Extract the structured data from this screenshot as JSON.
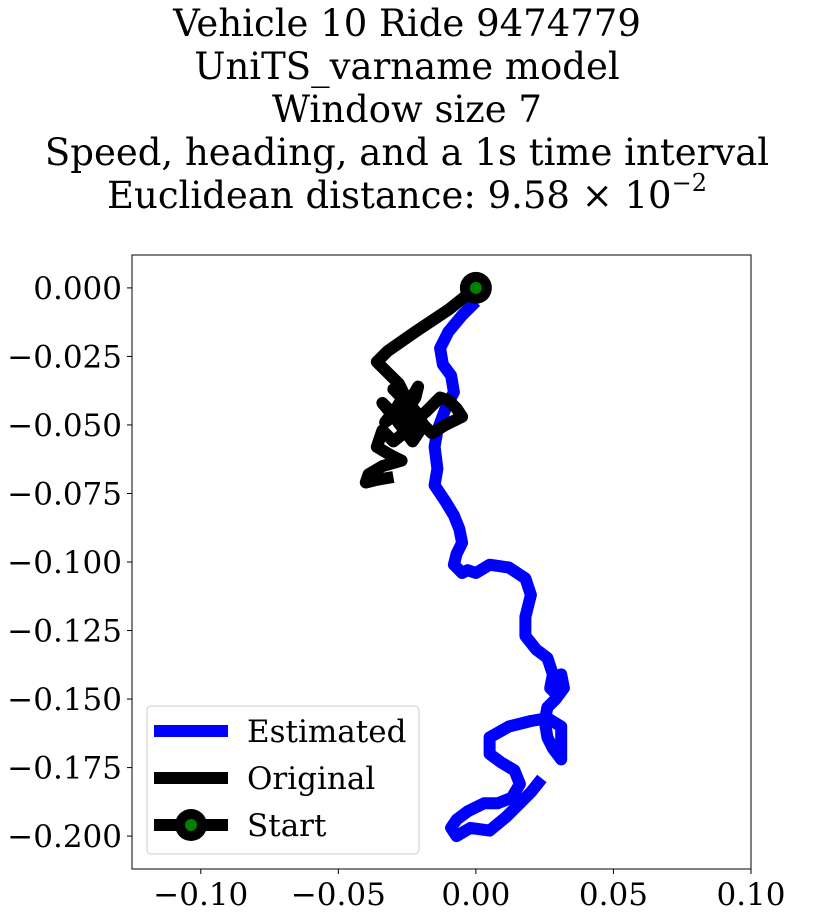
{
  "chart_data": {
    "type": "line",
    "title": {
      "line1": "Vehicle 10 Ride 9474779",
      "line2": "UniTS_varname model",
      "line3": "Window size 7",
      "line4": "Speed, heading, and a 1s time interval",
      "line5_prefix": "Euclidean distance: 9.58",
      "line5_times": "×",
      "line5_base": "10",
      "line5_exponent": "−2"
    },
    "xlabel": "",
    "ylabel": "",
    "xlim": [
      -0.125,
      0.1
    ],
    "ylim": [
      -0.212,
      0.012
    ],
    "xticks": [
      -0.1,
      -0.05,
      0.0,
      0.05,
      0.1
    ],
    "xtick_labels": [
      "−0.10",
      "−0.05",
      "0.00",
      "0.05",
      "0.10"
    ],
    "yticks": [
      0.0,
      -0.025,
      -0.05,
      -0.075,
      -0.1,
      -0.125,
      -0.15,
      -0.175,
      -0.2
    ],
    "ytick_labels": [
      "0.000",
      "−0.025",
      "−0.050",
      "−0.075",
      "−0.100",
      "−0.125",
      "−0.150",
      "−0.175",
      "−0.200"
    ],
    "grid": false,
    "legend_placement": "lower-left",
    "series": [
      {
        "name": "Estimated",
        "color": "#0000ff",
        "x": [
          0.0,
          -0.005,
          -0.01,
          -0.013,
          -0.012,
          -0.009,
          -0.008,
          -0.011,
          -0.014,
          -0.015,
          -0.014,
          -0.015,
          -0.011,
          -0.008,
          -0.006,
          -0.005,
          -0.007,
          -0.008,
          -0.005,
          -0.003,
          0.0,
          0.005,
          0.012,
          0.018,
          0.02,
          0.018,
          0.018,
          0.022,
          0.026,
          0.028,
          0.027,
          0.029,
          0.031,
          0.032,
          0.029,
          0.026,
          0.025,
          0.026,
          0.028,
          0.031,
          0.031,
          0.026,
          0.02,
          0.012,
          0.005,
          0.005,
          0.009,
          0.014,
          0.016,
          0.013,
          0.008,
          0.003,
          -0.003,
          -0.007,
          -0.009,
          -0.007,
          -0.002,
          0.005,
          0.011,
          0.016,
          0.02,
          0.024
        ],
        "y": [
          -0.005,
          -0.01,
          -0.016,
          -0.022,
          -0.028,
          -0.032,
          -0.038,
          -0.044,
          -0.052,
          -0.058,
          -0.066,
          -0.072,
          -0.078,
          -0.083,
          -0.088,
          -0.093,
          -0.097,
          -0.101,
          -0.104,
          -0.103,
          -0.104,
          -0.101,
          -0.102,
          -0.106,
          -0.112,
          -0.12,
          -0.127,
          -0.132,
          -0.135,
          -0.141,
          -0.146,
          -0.148,
          -0.141,
          -0.146,
          -0.15,
          -0.153,
          -0.158,
          -0.164,
          -0.168,
          -0.172,
          -0.16,
          -0.157,
          -0.158,
          -0.16,
          -0.164,
          -0.17,
          -0.173,
          -0.176,
          -0.181,
          -0.186,
          -0.188,
          -0.188,
          -0.191,
          -0.194,
          -0.197,
          -0.2,
          -0.197,
          -0.198,
          -0.193,
          -0.188,
          -0.184,
          -0.179
        ]
      },
      {
        "name": "Original",
        "color": "#000000",
        "x": [
          0.0,
          -0.01,
          -0.022,
          -0.032,
          -0.036,
          -0.033,
          -0.028,
          -0.026,
          -0.029,
          -0.033,
          -0.025,
          -0.021,
          -0.022,
          -0.026,
          -0.024,
          -0.018,
          -0.013,
          -0.01,
          -0.007,
          -0.005,
          -0.011,
          -0.016,
          -0.02,
          -0.024,
          -0.03,
          -0.026,
          -0.022,
          -0.019,
          -0.023,
          -0.029,
          -0.034,
          -0.029,
          -0.025,
          -0.03,
          -0.034,
          -0.036,
          -0.031,
          -0.027,
          -0.034,
          -0.039,
          -0.04,
          -0.036,
          -0.03
        ],
        "y": [
          0.0,
          -0.008,
          -0.016,
          -0.023,
          -0.027,
          -0.03,
          -0.035,
          -0.039,
          -0.044,
          -0.049,
          -0.043,
          -0.036,
          -0.04,
          -0.046,
          -0.05,
          -0.045,
          -0.04,
          -0.041,
          -0.044,
          -0.047,
          -0.05,
          -0.053,
          -0.049,
          -0.043,
          -0.037,
          -0.04,
          -0.045,
          -0.05,
          -0.056,
          -0.048,
          -0.042,
          -0.047,
          -0.052,
          -0.056,
          -0.052,
          -0.058,
          -0.061,
          -0.063,
          -0.065,
          -0.068,
          -0.071,
          -0.07,
          -0.069
        ]
      }
    ],
    "start_marker": {
      "name": "Start",
      "x": 0.0,
      "y": 0.0,
      "face_color": "#008000",
      "edge_color": "#000000"
    },
    "legend_entries": [
      "Estimated",
      "Original",
      "Start"
    ]
  }
}
